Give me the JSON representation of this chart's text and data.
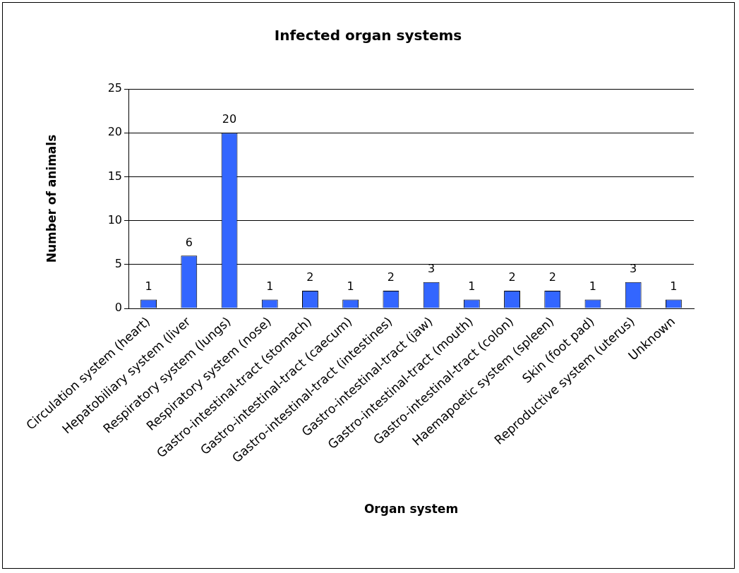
{
  "chart_data": {
    "type": "bar",
    "title": "Infected organ systems",
    "xlabel": "Organ system",
    "ylabel": "Number of animals",
    "categories": [
      "Circulation system (heart)",
      "Hepatobiliary system (liver",
      "Respiratory system (lungs)",
      "Respiratory system (nose)",
      "Gastro-intestinal-tract (stomach)",
      "Gastro-intestinal-tract (caecum)",
      "Gastro-intestinal-tract (intestines)",
      "Gastro-intestinal-tract (jaw)",
      "Gastro-intestinal-tract (mouth)",
      "Gastro-intestinal-tract (colon)",
      "Haemapoetic system (spleen)",
      "Skin (foot pad)",
      "Reproductive system (uterus)",
      "Unknown"
    ],
    "values": [
      1,
      6,
      20,
      1,
      2,
      1,
      2,
      3,
      1,
      2,
      2,
      1,
      3,
      1
    ],
    "color": "#3366ff",
    "ylim": [
      0,
      25
    ],
    "yticks": [
      0,
      5,
      10,
      15,
      20,
      25
    ],
    "grid": "y",
    "data_labels": true
  }
}
